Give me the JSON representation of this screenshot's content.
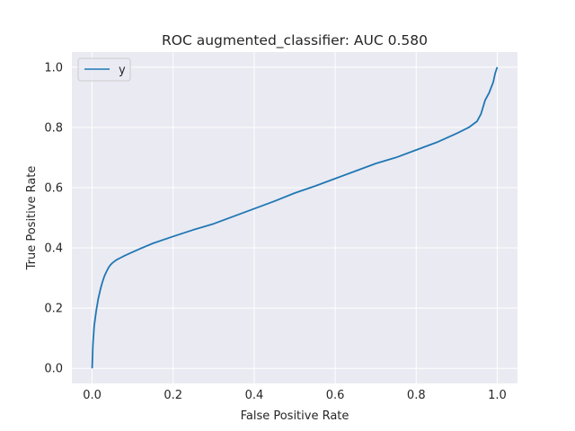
{
  "chart_data": {
    "type": "line",
    "title": "ROC augmented_classifier: AUC 0.580",
    "xlabel": "False Positive Rate",
    "ylabel": "True Positive Rate",
    "xlim": [
      -0.05,
      1.05
    ],
    "ylim": [
      -0.05,
      1.05
    ],
    "xticks": [
      0.0,
      0.2,
      0.4,
      0.6,
      0.8,
      1.0
    ],
    "yticks": [
      0.0,
      0.2,
      0.4,
      0.6,
      0.8,
      1.0
    ],
    "xtick_labels": [
      "0.0",
      "0.2",
      "0.4",
      "0.6",
      "0.8",
      "1.0"
    ],
    "ytick_labels": [
      "0.0",
      "0.2",
      "0.4",
      "0.6",
      "0.8",
      "1.0"
    ],
    "grid": true,
    "legend_position": "top-left",
    "colors": {
      "background": "#eaeaf2",
      "grid": "#ffffff",
      "series": "#1f77b4",
      "text": "#262626"
    },
    "series": [
      {
        "name": "y",
        "x": [
          0.0,
          0.002,
          0.005,
          0.01,
          0.015,
          0.02,
          0.025,
          0.03,
          0.035,
          0.04,
          0.045,
          0.05,
          0.06,
          0.07,
          0.08,
          0.1,
          0.12,
          0.15,
          0.2,
          0.25,
          0.3,
          0.35,
          0.4,
          0.45,
          0.5,
          0.55,
          0.6,
          0.65,
          0.7,
          0.75,
          0.8,
          0.85,
          0.9,
          0.93,
          0.95,
          0.96,
          0.97,
          0.98,
          0.99,
          0.995,
          1.0
        ],
        "y": [
          0.0,
          0.08,
          0.14,
          0.19,
          0.23,
          0.26,
          0.285,
          0.305,
          0.32,
          0.333,
          0.343,
          0.35,
          0.36,
          0.367,
          0.374,
          0.386,
          0.398,
          0.415,
          0.438,
          0.46,
          0.48,
          0.505,
          0.53,
          0.555,
          0.582,
          0.605,
          0.63,
          0.655,
          0.68,
          0.7,
          0.725,
          0.75,
          0.78,
          0.8,
          0.82,
          0.845,
          0.89,
          0.915,
          0.95,
          0.98,
          1.0
        ]
      }
    ]
  }
}
